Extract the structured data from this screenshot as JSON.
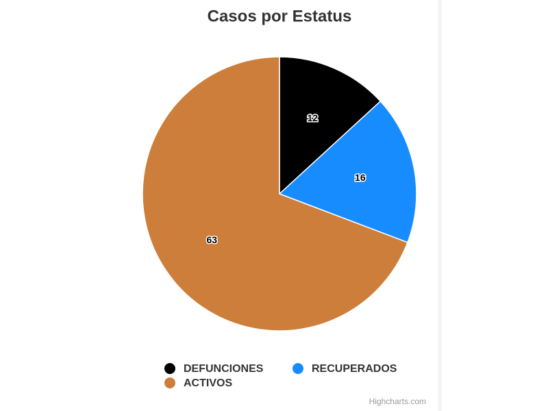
{
  "chart_data": {
    "type": "pie",
    "title": "Casos por Estatus",
    "categories": [
      "DEFUNCIONES",
      "RECUPERADOS",
      "ACTIVOS"
    ],
    "values": [
      12,
      16,
      63
    ],
    "colors": [
      "#000000",
      "#178cff",
      "#cd7e3a"
    ],
    "legend": "bottom",
    "credits": "Highcharts.com"
  }
}
